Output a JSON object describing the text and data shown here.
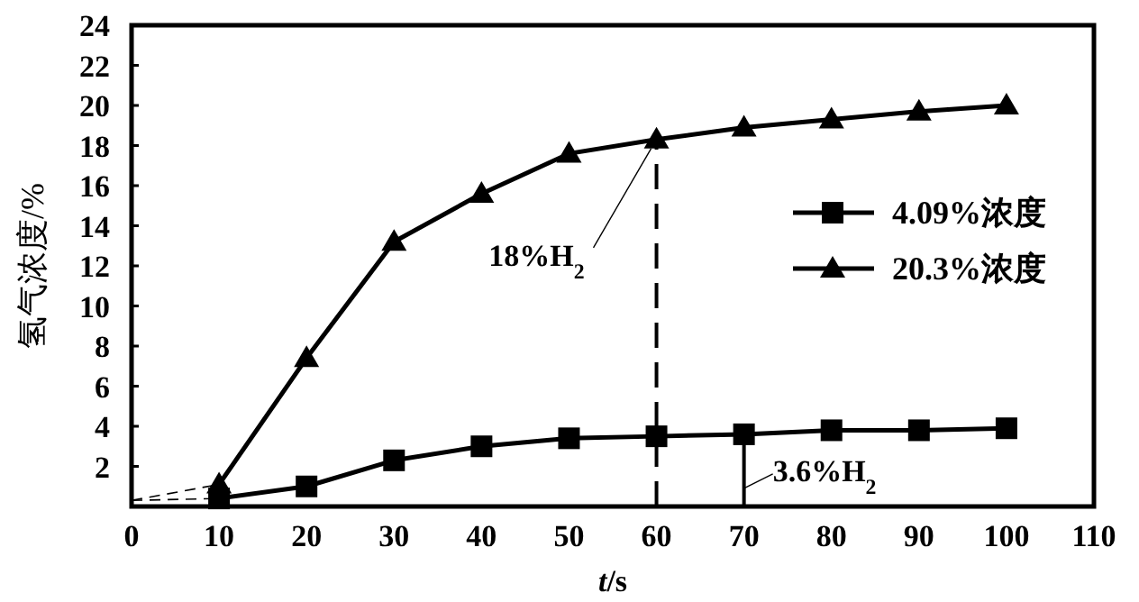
{
  "chart_data": {
    "type": "line",
    "xlabel": "*t*/s",
    "ylabel": "氢气浓度/%",
    "x": [
      10,
      20,
      30,
      40,
      50,
      60,
      70,
      80,
      90,
      100
    ],
    "series": [
      {
        "name": "4.09%浓度",
        "color": "#000000",
        "marker": "square",
        "values": [
          0.4,
          1.0,
          2.3,
          3.0,
          3.4,
          3.5,
          3.6,
          3.8,
          3.8,
          3.9
        ]
      },
      {
        "name": "20.3%浓度",
        "color": "#000000",
        "marker": "triangle",
        "values": [
          1.1,
          7.4,
          13.2,
          15.6,
          17.6,
          18.3,
          18.9,
          19.3,
          19.7,
          20.0
        ]
      },
      {
        "type": "line",
        "color": "#000000",
        "marker": "none",
        "line_style": "dashed",
        "x": [
          0,
          10,
          20
        ],
        "values": [
          0.3,
          0.4,
          1.0
        ]
      },
      {
        "type": "line",
        "color": "#000000",
        "marker": "none",
        "line_style": "dashed",
        "x": [
          0,
          10
        ],
        "values": [
          0.3,
          1.1
        ]
      }
    ],
    "xlim": [
      0,
      110
    ],
    "xticks": [
      0,
      10,
      20,
      30,
      40,
      50,
      60,
      70,
      80,
      90,
      100,
      110
    ],
    "ylim": [
      0,
      24
    ],
    "yticks": [
      2,
      4,
      6,
      8,
      10,
      12,
      14,
      16,
      18,
      20,
      22,
      24
    ],
    "legend": "right",
    "line_style": "solid",
    "annotations": [
      {
        "text": "18%H$_{2}$",
        "x": 60,
        "y": 18.3
      },
      {
        "text": "3.6%H$_{2}$",
        "x": 70,
        "y": 3.6
      }
    ]
  }
}
